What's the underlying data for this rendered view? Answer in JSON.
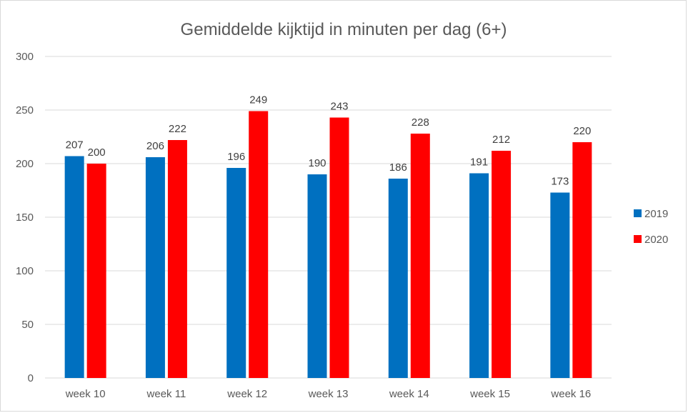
{
  "chart_data": {
    "type": "bar",
    "title": "Gemiddelde kijktijd in minuten per dag (6+)",
    "categories": [
      "week 10",
      "week 11",
      "week 12",
      "week 13",
      "week 14",
      "week 15",
      "week 16"
    ],
    "series": [
      {
        "name": "2019",
        "color": "#0070c0",
        "values": [
          207,
          206,
          196,
          190,
          186,
          191,
          173
        ]
      },
      {
        "name": "2020",
        "color": "#ff0000",
        "values": [
          200,
          222,
          249,
          243,
          228,
          212,
          220
        ]
      }
    ],
    "ylim": [
      0,
      300
    ],
    "yticks": [
      0,
      50,
      100,
      150,
      200,
      250,
      300
    ],
    "grid": true,
    "legend_position": "right",
    "data_labels": true
  }
}
